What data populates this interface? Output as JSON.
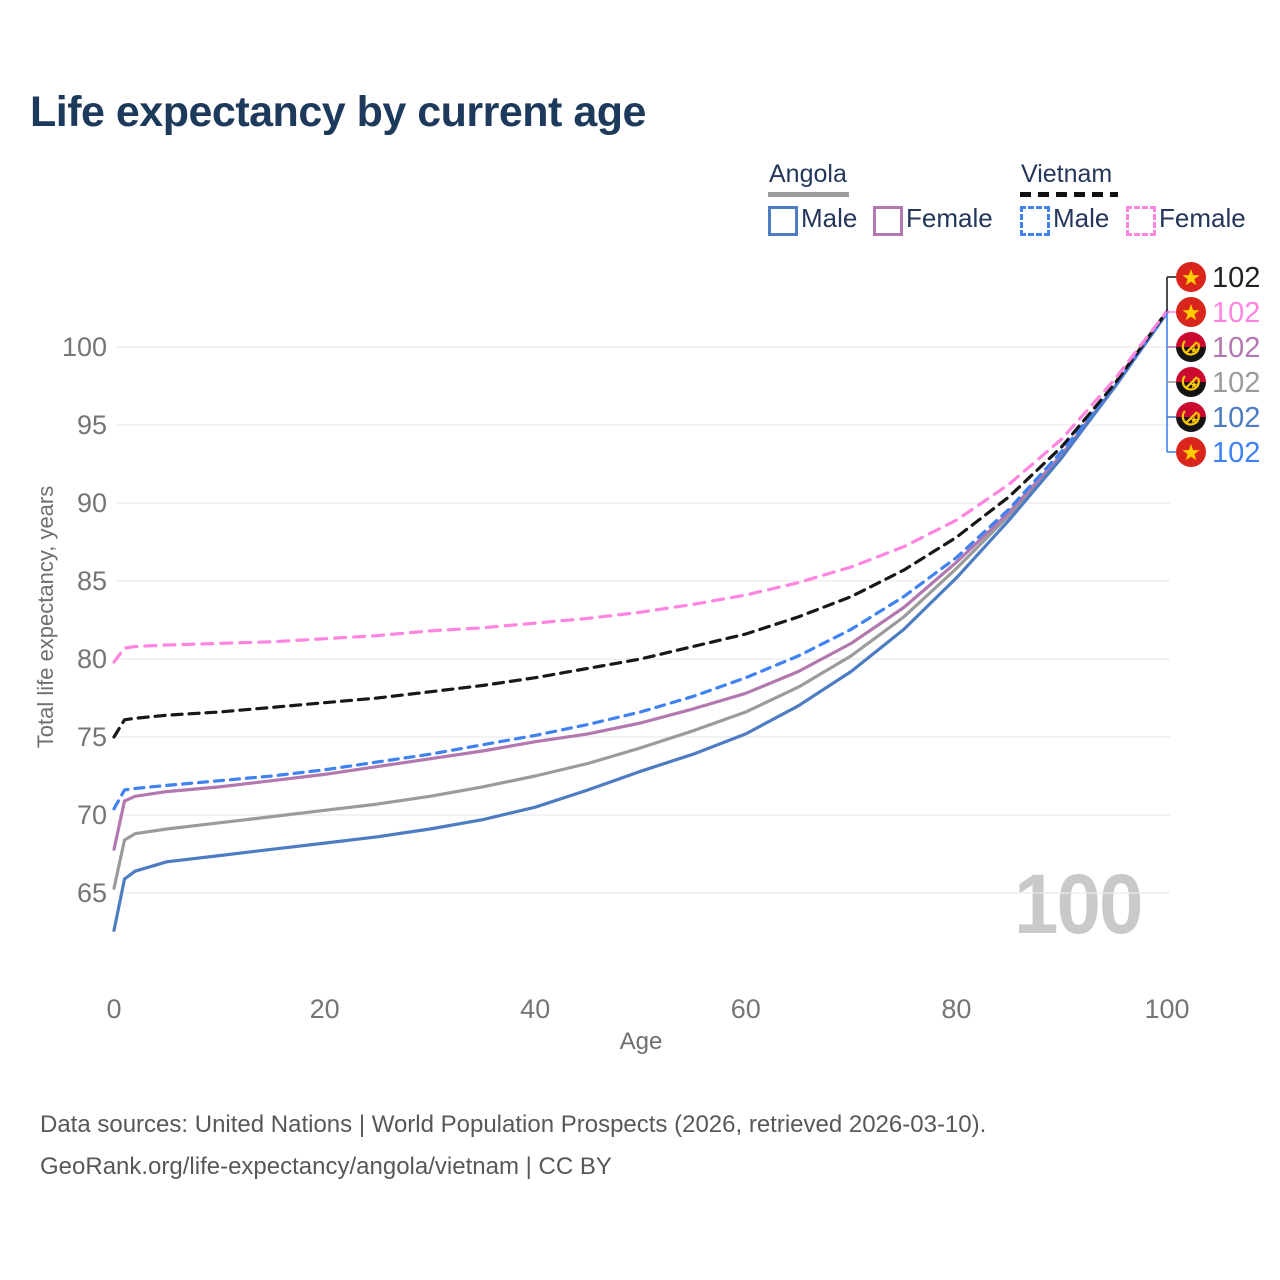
{
  "title": "Life expectancy by current age",
  "legend": {
    "groups": [
      {
        "label": "Angola",
        "line_style": "solid",
        "underline_color": "#9b9b9b",
        "items": [
          {
            "label": "Male",
            "color": "#4d7cc2"
          },
          {
            "label": "Female",
            "color": "#b278af"
          }
        ]
      },
      {
        "label": "Vietnam",
        "line_style": "dashed",
        "underline_color": "#111111",
        "items": [
          {
            "label": "Male",
            "color": "#3f82f0"
          },
          {
            "label": "Female",
            "color": "#ff85e0"
          }
        ]
      }
    ]
  },
  "watermark": "100",
  "footer": {
    "line1": "Data sources: United Nations | World Population Prospects (2026, retrieved 2026-03-10).",
    "line2": "GeoRank.org/life-expectancy/angola/vietnam | CC BY"
  },
  "end_labels": [
    {
      "flag": "vietnam",
      "series": "Vietnam total",
      "value": "102",
      "color": "#222222"
    },
    {
      "flag": "vietnam",
      "series": "Vietnam Female",
      "value": "102",
      "color": "#ff85e0"
    },
    {
      "flag": "angola",
      "series": "Angola Female",
      "value": "102",
      "color": "#b278af"
    },
    {
      "flag": "angola",
      "series": "Angola total",
      "value": "102",
      "color": "#9b9b9b"
    },
    {
      "flag": "angola",
      "series": "Angola Male",
      "value": "102",
      "color": "#4d7cc2"
    },
    {
      "flag": "vietnam",
      "series": "Vietnam Male",
      "value": "102",
      "color": "#3f82f0"
    }
  ],
  "chart_data": {
    "type": "line",
    "title": "Life expectancy by current age",
    "xlabel": "Age",
    "ylabel": "Total life expectancy, years",
    "xlim": [
      0,
      100
    ],
    "ylim": [
      62,
      103
    ],
    "x_ticks": [
      0,
      20,
      40,
      60,
      80,
      100
    ],
    "y_ticks": [
      65,
      70,
      75,
      80,
      85,
      90,
      95,
      100
    ],
    "grid": "horizontal",
    "legend_position": "top-right",
    "ages": [
      0,
      1,
      2,
      5,
      10,
      15,
      20,
      25,
      30,
      35,
      40,
      45,
      50,
      55,
      60,
      65,
      70,
      75,
      80,
      85,
      90,
      95,
      100
    ],
    "series": [
      {
        "name": "Angola total",
        "country": "Angola",
        "sex": "both",
        "color": "#9b9b9b",
        "dash": "solid",
        "values": [
          65.3,
          68.4,
          68.8,
          69.1,
          69.5,
          69.9,
          70.3,
          70.7,
          71.2,
          71.8,
          72.5,
          73.3,
          74.3,
          75.4,
          76.6,
          78.2,
          80.2,
          82.7,
          85.8,
          89.2,
          93.0,
          97.4,
          102.2
        ]
      },
      {
        "name": "Angola Female",
        "country": "Angola",
        "sex": "female",
        "color": "#b278af",
        "dash": "solid",
        "values": [
          67.8,
          70.9,
          71.2,
          71.5,
          71.8,
          72.2,
          72.6,
          73.1,
          73.6,
          74.1,
          74.7,
          75.2,
          75.9,
          76.8,
          77.8,
          79.2,
          81.0,
          83.3,
          86.2,
          89.4,
          93.1,
          97.4,
          102.2
        ]
      },
      {
        "name": "Angola Male",
        "country": "Angola",
        "sex": "male",
        "color": "#4d7cc2",
        "dash": "solid",
        "values": [
          62.6,
          65.9,
          66.4,
          67.0,
          67.4,
          67.8,
          68.2,
          68.6,
          69.1,
          69.7,
          70.5,
          71.6,
          72.8,
          73.9,
          75.2,
          77.0,
          79.2,
          81.9,
          85.2,
          88.9,
          92.9,
          97.4,
          102.2
        ]
      },
      {
        "name": "Vietnam Male",
        "country": "Vietnam",
        "sex": "male",
        "color": "#3f82f0",
        "dash": "dashed",
        "values": [
          70.4,
          71.6,
          71.7,
          71.9,
          72.2,
          72.5,
          72.9,
          73.4,
          73.9,
          74.5,
          75.1,
          75.8,
          76.6,
          77.6,
          78.8,
          80.2,
          81.9,
          84.0,
          86.5,
          89.6,
          93.3,
          97.5,
          102.2
        ]
      },
      {
        "name": "Vietnam total",
        "country": "Vietnam",
        "sex": "both",
        "color": "#181818",
        "dash": "dashed",
        "values": [
          75.0,
          76.1,
          76.2,
          76.4,
          76.6,
          76.9,
          77.2,
          77.5,
          77.9,
          78.3,
          78.8,
          79.4,
          80.0,
          80.8,
          81.6,
          82.7,
          84.0,
          85.7,
          87.8,
          90.4,
          93.6,
          97.6,
          102.3
        ]
      },
      {
        "name": "Vietnam Female",
        "country": "Vietnam",
        "sex": "female",
        "color": "#ff85e0",
        "dash": "dashed",
        "values": [
          79.8,
          80.7,
          80.8,
          80.9,
          81.0,
          81.1,
          81.3,
          81.5,
          81.8,
          82.0,
          82.3,
          82.6,
          83.0,
          83.5,
          84.1,
          84.9,
          85.9,
          87.2,
          88.9,
          91.2,
          94.1,
          97.9,
          102.3
        ]
      }
    ]
  }
}
